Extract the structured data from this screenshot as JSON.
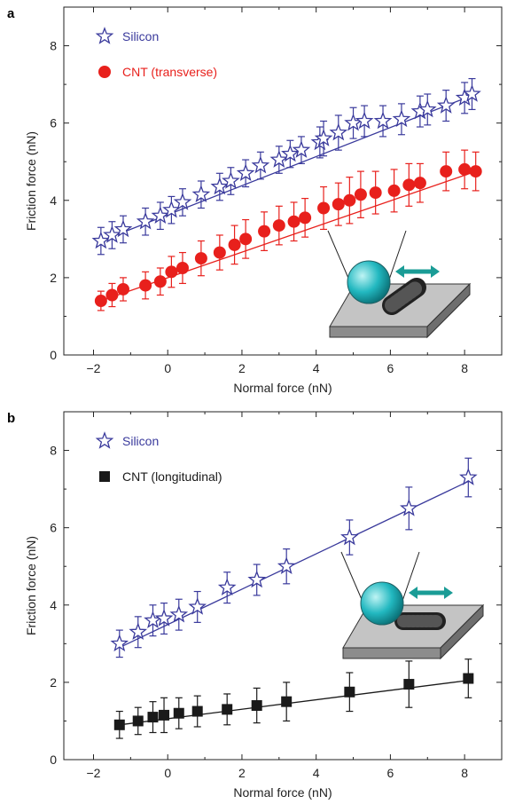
{
  "chart_data": [
    {
      "type": "scatter",
      "panel_label": "a",
      "xlabel": "Normal force (nN)",
      "ylabel": "Friction force (nN)",
      "xlim": [
        -2.8,
        9.0
      ],
      "ylim": [
        0,
        9.0
      ],
      "xticks": [
        -2,
        0,
        2,
        4,
        6,
        8
      ],
      "yticks": [
        0,
        2,
        4,
        6,
        8
      ],
      "xtick_labels": [
        "−2",
        "0",
        "2",
        "4",
        "6",
        "8"
      ],
      "ytick_labels": [
        "0",
        "2",
        "4",
        "6",
        "8"
      ],
      "legend_position": "top-left",
      "series": [
        {
          "name": "Silicon",
          "marker": "star",
          "color": "#3a3a9c",
          "fill": "#ffffff",
          "fit_line": [
            [
              -1.8,
              2.95
            ],
            [
              8.3,
              6.75
            ]
          ],
          "x": [
            -1.8,
            -1.5,
            -1.2,
            -0.6,
            -0.2,
            0.1,
            0.4,
            0.9,
            1.4,
            1.7,
            2.1,
            2.5,
            3.0,
            3.3,
            3.6,
            4.1,
            4.2,
            4.6,
            5.0,
            5.3,
            5.8,
            6.3,
            6.8,
            7.0,
            7.5,
            8.0,
            8.2
          ],
          "y": [
            2.95,
            3.1,
            3.25,
            3.45,
            3.6,
            3.75,
            3.95,
            4.15,
            4.35,
            4.5,
            4.7,
            4.9,
            5.05,
            5.2,
            5.3,
            5.5,
            5.6,
            5.75,
            6.0,
            6.05,
            6.05,
            6.1,
            6.3,
            6.35,
            6.45,
            6.65,
            6.75
          ],
          "err": [
            0.35,
            0.35,
            0.35,
            0.35,
            0.35,
            0.35,
            0.35,
            0.35,
            0.35,
            0.35,
            0.35,
            0.35,
            0.35,
            0.35,
            0.35,
            0.4,
            0.45,
            0.45,
            0.4,
            0.4,
            0.4,
            0.4,
            0.4,
            0.4,
            0.4,
            0.4,
            0.4
          ]
        },
        {
          "name": "CNT (transverse)",
          "marker": "circle",
          "color": "#e8201c",
          "fill": "#e8201c",
          "fit_line": [
            [
              -1.8,
              1.4
            ],
            [
              8.3,
              4.75
            ]
          ],
          "x": [
            -1.8,
            -1.5,
            -1.2,
            -0.6,
            -0.2,
            0.1,
            0.4,
            0.9,
            1.4,
            1.8,
            2.1,
            2.6,
            3.0,
            3.4,
            3.7,
            4.2,
            4.6,
            4.9,
            5.2,
            5.6,
            6.1,
            6.5,
            6.8,
            7.5,
            8.0,
            8.3
          ],
          "y": [
            1.4,
            1.55,
            1.7,
            1.8,
            1.9,
            2.15,
            2.25,
            2.5,
            2.65,
            2.85,
            3.0,
            3.2,
            3.35,
            3.45,
            3.55,
            3.8,
            3.9,
            4.0,
            4.15,
            4.2,
            4.25,
            4.4,
            4.45,
            4.75,
            4.8,
            4.75
          ],
          "err": [
            0.25,
            0.3,
            0.3,
            0.35,
            0.35,
            0.4,
            0.4,
            0.45,
            0.45,
            0.5,
            0.5,
            0.5,
            0.5,
            0.5,
            0.5,
            0.55,
            0.55,
            0.6,
            0.6,
            0.55,
            0.55,
            0.55,
            0.5,
            0.5,
            0.5,
            0.5
          ]
        }
      ]
    },
    {
      "type": "scatter",
      "panel_label": "b",
      "xlabel": "Normal force (nN)",
      "ylabel": "Friction force (nN)",
      "xlim": [
        -2.8,
        9.0
      ],
      "ylim": [
        0,
        9.0
      ],
      "xticks": [
        -2,
        0,
        2,
        4,
        6,
        8
      ],
      "yticks": [
        0,
        2,
        4,
        6,
        8
      ],
      "xtick_labels": [
        "−2",
        "0",
        "2",
        "4",
        "6",
        "8"
      ],
      "ytick_labels": [
        "0",
        "2",
        "4",
        "6",
        "8"
      ],
      "legend_position": "top-left",
      "series": [
        {
          "name": "Silicon",
          "marker": "star",
          "color": "#3a3a9c",
          "fill": "#ffffff",
          "fit_line": [
            [
              -1.3,
              2.9
            ],
            [
              8.1,
              7.2
            ]
          ],
          "x": [
            -1.3,
            -0.8,
            -0.4,
            -0.1,
            0.3,
            0.8,
            1.6,
            2.4,
            3.2,
            4.9,
            6.5,
            8.1
          ],
          "y": [
            3.0,
            3.3,
            3.6,
            3.65,
            3.75,
            3.95,
            4.45,
            4.65,
            5.0,
            5.75,
            6.5,
            7.3
          ],
          "err": [
            0.35,
            0.4,
            0.4,
            0.4,
            0.4,
            0.4,
            0.4,
            0.4,
            0.45,
            0.45,
            0.55,
            0.5
          ]
        },
        {
          "name": "CNT (longitudinal)",
          "marker": "square",
          "color": "#1a1a1a",
          "fill": "#1a1a1a",
          "fit_line": [
            [
              -1.3,
              0.9
            ],
            [
              8.1,
              2.05
            ]
          ],
          "x": [
            -1.3,
            -0.8,
            -0.4,
            -0.1,
            0.3,
            0.8,
            1.6,
            2.4,
            3.2,
            4.9,
            6.5,
            8.1
          ],
          "y": [
            0.9,
            1.0,
            1.1,
            1.15,
            1.2,
            1.25,
            1.3,
            1.4,
            1.5,
            1.75,
            1.95,
            2.1
          ],
          "err": [
            0.35,
            0.35,
            0.4,
            0.45,
            0.4,
            0.4,
            0.4,
            0.45,
            0.5,
            0.5,
            0.6,
            0.5
          ]
        }
      ]
    }
  ],
  "colors": {
    "silicon": "#3a3a9c",
    "cnt_transverse": "#e8201c",
    "cnt_longitudinal": "#1a1a1a",
    "sphere": "#22b8c0",
    "arrow": "#1a9c96",
    "substrate": "#b0b0b0"
  }
}
